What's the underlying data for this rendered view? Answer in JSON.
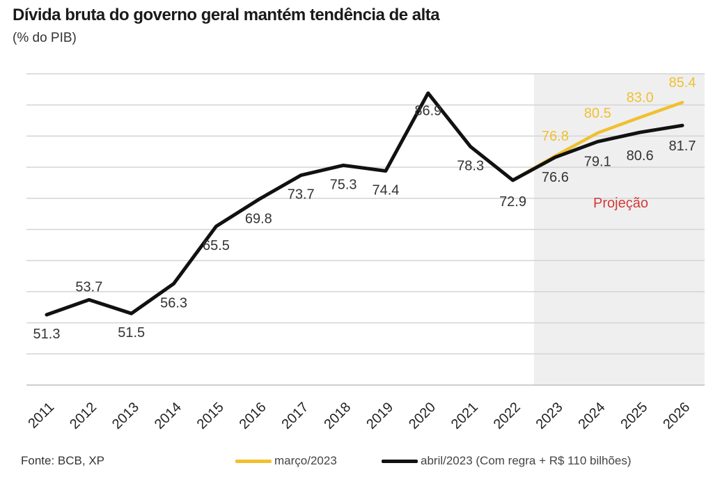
{
  "header": {
    "title": "Dívida bruta do governo geral mantém tendência de alta",
    "subtitle": "(% do PIB)"
  },
  "footer": {
    "source": "Fonte: BCB, XP"
  },
  "chart_data": {
    "type": "line",
    "x": [
      "2011",
      "2012",
      "2013",
      "2014",
      "2015",
      "2016",
      "2017",
      "2018",
      "2019",
      "2020",
      "2021",
      "2022",
      "2023",
      "2024",
      "2025",
      "2026"
    ],
    "ylim": [
      40,
      90
    ],
    "grid": true,
    "projection_start": "2023",
    "projection_label": "Projeção",
    "legend_position": "bottom",
    "series": [
      {
        "name": "abril/2023 (Com regra + R$ 110 bilhões)",
        "color": "#111111",
        "x": [
          "2011",
          "2012",
          "2013",
          "2014",
          "2015",
          "2016",
          "2017",
          "2018",
          "2019",
          "2020",
          "2021",
          "2022",
          "2023",
          "2024",
          "2025",
          "2026"
        ],
        "values": [
          51.3,
          53.7,
          51.5,
          56.3,
          65.5,
          69.8,
          73.7,
          75.3,
          74.4,
          86.9,
          78.3,
          72.9,
          76.6,
          79.1,
          80.6,
          81.7
        ],
        "labels": [
          "51.3",
          "53.7",
          "51.5",
          "56.3",
          "65.5",
          "69.8",
          "73.7",
          "75.3",
          "74.4",
          "86.9",
          "78.3",
          "72.9",
          "76.6",
          "79.1",
          "80.6",
          "81.7"
        ]
      },
      {
        "name": "março/2023",
        "color": "#f0c030",
        "x": [
          "2022",
          "2023",
          "2024",
          "2025",
          "2026"
        ],
        "values": [
          72.9,
          76.8,
          80.5,
          83.0,
          85.4
        ],
        "labels": [
          "",
          "76.8",
          "80.5",
          "83.0",
          "85.4"
        ]
      }
    ]
  }
}
